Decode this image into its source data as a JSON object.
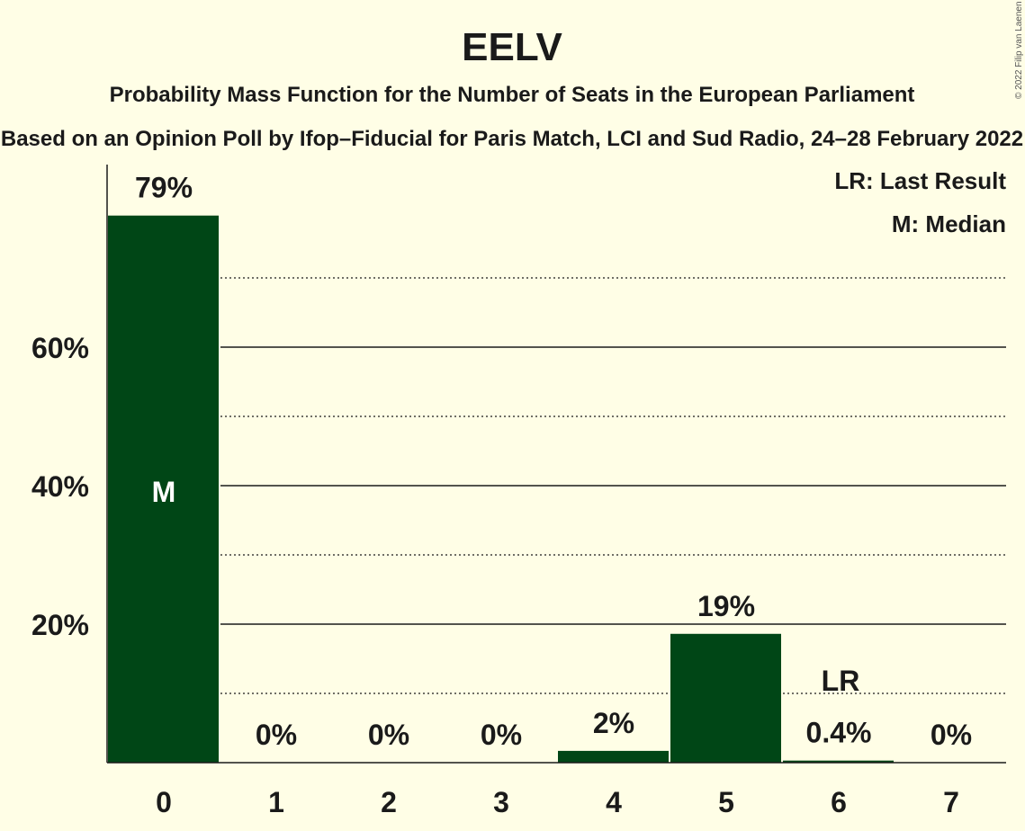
{
  "title": "EELV",
  "subtitle": "Probability Mass Function for the Number of Seats in the European Parliament",
  "subtitle2": "Based on an Opinion Poll by Ifop–Fiducial for Paris Match, LCI and Sud Radio, 24–28 February 2022",
  "copyright": "© 2022 Filip van Laenen",
  "legend": {
    "last_result": "LR: Last Result",
    "median": "M: Median"
  },
  "colors": {
    "bar": "#004616",
    "background": "#fffee6",
    "text": "#1a1a1a"
  },
  "chart_data": {
    "type": "bar",
    "categories": [
      "0",
      "1",
      "2",
      "3",
      "4",
      "5",
      "6",
      "7"
    ],
    "values": [
      79,
      0,
      0,
      0,
      2,
      19,
      0.4,
      0
    ],
    "value_labels": [
      "79%",
      "0%",
      "0%",
      "0%",
      "2%",
      "19%",
      "0.4%",
      "0%"
    ],
    "bar_heights_estimated": [
      79,
      0,
      0,
      0,
      1.7,
      18.6,
      0.3,
      0
    ],
    "yticks": [
      20,
      40,
      60
    ],
    "ytick_labels": [
      "20%",
      "40%",
      "60%"
    ],
    "minor_gridlines": [
      10,
      30,
      50,
      70
    ],
    "ylim": [
      0,
      86
    ],
    "median_index": 0,
    "median_label": "M",
    "last_result_index": 6,
    "last_result_label": "LR",
    "grid": true,
    "legend_position": "top-right"
  }
}
